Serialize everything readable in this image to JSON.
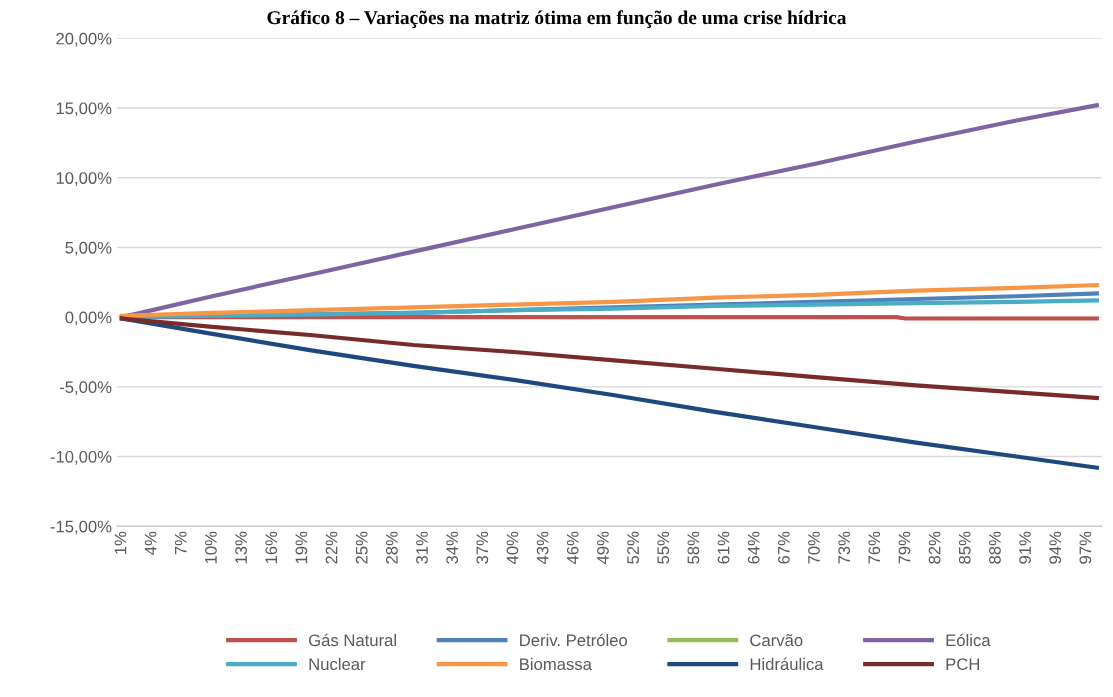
{
  "chart_data": {
    "type": "line",
    "title": "Gráfico 8 – Variações na matriz ótima em função de uma crise hídrica",
    "xlim": [
      0.5,
      98.5
    ],
    "xticks": [
      {
        "value": 1,
        "label": "1%"
      },
      {
        "value": 4,
        "label": "4%"
      },
      {
        "value": 7,
        "label": "7%"
      },
      {
        "value": 10,
        "label": "10%"
      },
      {
        "value": 13,
        "label": "13%"
      },
      {
        "value": 16,
        "label": "16%"
      },
      {
        "value": 19,
        "label": "19%"
      },
      {
        "value": 22,
        "label": "22%"
      },
      {
        "value": 25,
        "label": "25%"
      },
      {
        "value": 28,
        "label": "28%"
      },
      {
        "value": 31,
        "label": "31%"
      },
      {
        "value": 34,
        "label": "34%"
      },
      {
        "value": 37,
        "label": "37%"
      },
      {
        "value": 40,
        "label": "40%"
      },
      {
        "value": 43,
        "label": "43%"
      },
      {
        "value": 46,
        "label": "46%"
      },
      {
        "value": 49,
        "label": "49%"
      },
      {
        "value": 52,
        "label": "52%"
      },
      {
        "value": 55,
        "label": "55%"
      },
      {
        "value": 58,
        "label": "58%"
      },
      {
        "value": 61,
        "label": "61%"
      },
      {
        "value": 64,
        "label": "64%"
      },
      {
        "value": 67,
        "label": "67%"
      },
      {
        "value": 70,
        "label": "70%"
      },
      {
        "value": 73,
        "label": "73%"
      },
      {
        "value": 76,
        "label": "76%"
      },
      {
        "value": 79,
        "label": "79%"
      },
      {
        "value": 82,
        "label": "82%"
      },
      {
        "value": 85,
        "label": "85%"
      },
      {
        "value": 88,
        "label": "88%"
      },
      {
        "value": 91,
        "label": "91%"
      },
      {
        "value": 94,
        "label": "94%"
      },
      {
        "value": 97,
        "label": "97%"
      }
    ],
    "ylim": [
      -15,
      20
    ],
    "yticks": [
      {
        "value": -15,
        "label": "-15,00%"
      },
      {
        "value": -10,
        "label": "-10,00%"
      },
      {
        "value": -5,
        "label": "-5,00%"
      },
      {
        "value": 0,
        "label": "0,00%"
      },
      {
        "value": 5,
        "label": "5,00%"
      },
      {
        "value": 10,
        "label": "10,00%"
      },
      {
        "value": 15,
        "label": "15,00%"
      },
      {
        "value": 20,
        "label": "20,00%"
      }
    ],
    "grid": "y",
    "legend": "bottom",
    "marker": "none",
    "line_style": "solid",
    "series": [
      {
        "name": "Gás Natural",
        "color": "#c0504d",
        "x": [
          1,
          78,
          79,
          98
        ],
        "values": [
          0,
          0,
          -0.1,
          -0.1
        ]
      },
      {
        "name": "Deriv. Petróleo",
        "color": "#4f81bd",
        "x": [
          1,
          10,
          20,
          30,
          40,
          50,
          60,
          70,
          80,
          90,
          98
        ],
        "values": [
          0,
          0.1,
          0.2,
          0.3,
          0.5,
          0.7,
          0.9,
          1.1,
          1.3,
          1.5,
          1.7
        ]
      },
      {
        "name": "Carvão",
        "color": "#9bbb59"
      },
      {
        "name": "Eólica",
        "color": "#8064a2",
        "x": [
          1,
          10,
          20,
          30,
          40,
          50,
          60,
          70,
          80,
          90,
          98
        ],
        "values": [
          0,
          1.5,
          3.1,
          4.7,
          6.3,
          7.9,
          9.5,
          11.0,
          12.6,
          14.1,
          15.2
        ]
      },
      {
        "name": "Nuclear",
        "color": "#4bacc6",
        "x": [
          1,
          10,
          20,
          30,
          40,
          50,
          60,
          70,
          80,
          90,
          98
        ],
        "values": [
          0,
          0.1,
          0.2,
          0.3,
          0.5,
          0.6,
          0.8,
          0.9,
          1.0,
          1.1,
          1.2
        ]
      },
      {
        "name": "Biomassa",
        "color": "#f79646",
        "x": [
          1,
          10,
          20,
          30,
          40,
          50,
          60,
          70,
          80,
          90,
          98
        ],
        "values": [
          0.1,
          0.3,
          0.5,
          0.7,
          0.9,
          1.1,
          1.4,
          1.6,
          1.9,
          2.1,
          2.3
        ]
      },
      {
        "name": "Hidráulica",
        "color": "#1f497d",
        "x": [
          1,
          10,
          20,
          30,
          40,
          50,
          60,
          70,
          80,
          90,
          98
        ],
        "values": [
          -0.1,
          -1.2,
          -2.4,
          -3.5,
          -4.5,
          -5.6,
          -6.8,
          -7.9,
          -9.0,
          -10.0,
          -10.8
        ]
      },
      {
        "name": "PCH",
        "color": "#772c2a",
        "x": [
          1,
          10,
          20,
          30,
          40,
          50,
          60,
          70,
          80,
          90,
          98
        ],
        "values": [
          -0.1,
          -0.7,
          -1.3,
          -2.0,
          -2.5,
          -3.1,
          -3.7,
          -4.3,
          -4.9,
          -5.4,
          -5.8
        ]
      }
    ]
  }
}
